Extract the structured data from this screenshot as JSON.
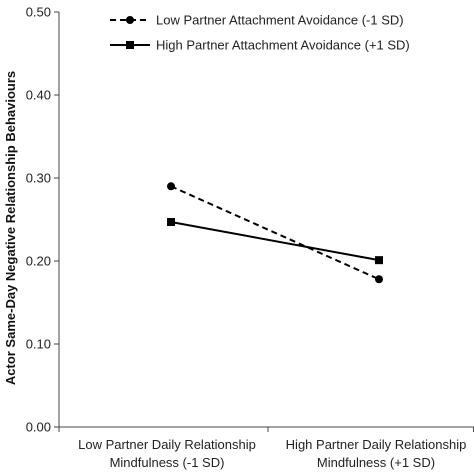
{
  "chart_data": {
    "type": "line",
    "categories": [
      [
        "Low Partner Daily Relationship",
        "Mindfulness (-1 SD)"
      ],
      [
        "High Partner Daily Relationship",
        "Mindfulness (+1 SD)"
      ]
    ],
    "ylabel": "Actor Same-Day Negative Relationship Behaviours",
    "ylim": [
      0.0,
      0.5
    ],
    "yticks": [
      "0.00",
      "0.10",
      "0.20",
      "0.30",
      "0.40",
      "0.50"
    ],
    "grid": false,
    "legend_position": "top",
    "series": [
      {
        "name": "Low Partner Attachment Avoidance (-1 SD)",
        "values": [
          0.29,
          0.178
        ],
        "line_style": "dashed",
        "marker": "circle",
        "color": "#000000"
      },
      {
        "name": "High Partner Attachment Avoidance (+1 SD)",
        "values": [
          0.247,
          0.201
        ],
        "line_style": "solid",
        "marker": "square",
        "color": "#000000"
      }
    ]
  }
}
